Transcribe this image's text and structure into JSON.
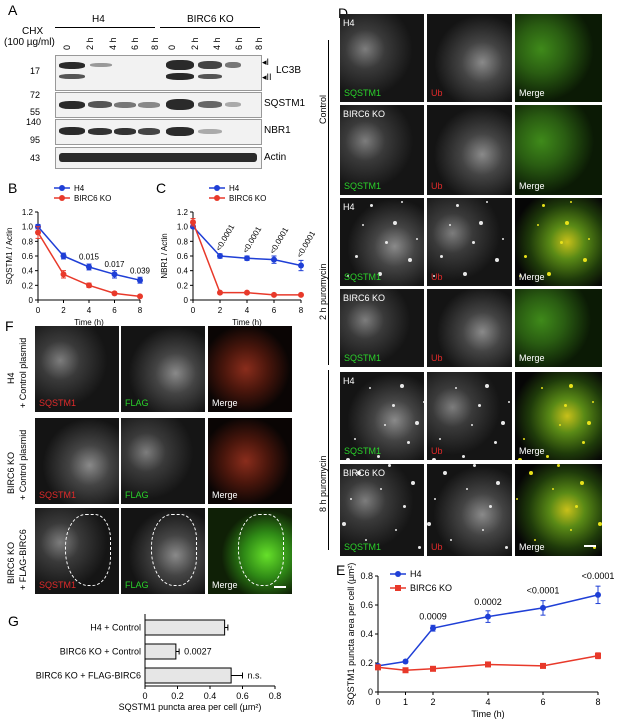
{
  "panels": {
    "A": "A",
    "B": "B",
    "C": "C",
    "D": "D",
    "E": "E",
    "F": "F",
    "G": "G"
  },
  "A": {
    "cond_label": "CHX",
    "cond_dose": "(100 µg/ml)",
    "groups": [
      "H4",
      "BIRC6 KO"
    ],
    "times": [
      "0",
      "2 h",
      "2 h",
      "4 h",
      "6 h",
      "8 h"
    ],
    "markers": [
      "LC3B",
      "SQSTM1",
      "NBR1",
      "Actin"
    ],
    "lc3b_forms": [
      "◂I",
      "◂II"
    ],
    "mw": {
      "lc3b": "17",
      "sqstm1_a": "72",
      "sqstm1_b": "55",
      "nbr1_a": "140",
      "nbr1_b": "95",
      "actin": "43"
    }
  },
  "D": {
    "cell_lines": [
      "H4",
      "BIRC6 KO",
      "H4",
      "BIRC6 KO",
      "H4",
      "BIRC6 KO"
    ],
    "channels": [
      "SQSTM1",
      "Ub",
      "Merge"
    ],
    "groups": [
      "Control",
      "2 h puromycin",
      "8 h puromycin"
    ]
  },
  "F": {
    "rows": [
      "H4\n+ Control plasmid",
      "BIRC6 KO\n+ Control plasmid",
      "BIRC6 KO\n+ FLAG-BIRC6"
    ],
    "row_h4": "H4",
    "row_ctrl": "+ Control plasmid",
    "row_ko": "BIRC6 KO",
    "row_flag": "+ FLAG-BIRC6",
    "channels": [
      "SQSTM1",
      "FLAG",
      "Merge"
    ]
  },
  "chart_data": [
    {
      "panel": "B",
      "type": "line",
      "xlabel": "Time (h)",
      "ylabel": "SQSTM1 / Actin",
      "x": [
        0,
        2,
        4,
        6,
        8
      ],
      "xlim": [
        0,
        8
      ],
      "ylim": [
        0,
        1.2
      ],
      "xticks": [
        "0",
        "2",
        "4",
        "6",
        "8"
      ],
      "yticks": [
        "0",
        "0.2",
        "0.4",
        "0.6",
        "0.8",
        "1.0",
        "1.2"
      ],
      "series": [
        {
          "name": "H4",
          "color": "#1f3fd6",
          "values": [
            1.0,
            0.6,
            0.45,
            0.35,
            0.27
          ],
          "err": [
            0.03,
            0.04,
            0.04,
            0.05,
            0.04
          ]
        },
        {
          "name": "BIRC6 KO",
          "color": "#e8392a",
          "values": [
            0.92,
            0.35,
            0.2,
            0.09,
            0.05
          ],
          "err": [
            0.08,
            0.05,
            0.03,
            0.02,
            0.01
          ]
        }
      ],
      "annotations": [
        {
          "x": 4,
          "y": 0.55,
          "text": "0.015"
        },
        {
          "x": 6,
          "y": 0.45,
          "text": "0.017"
        },
        {
          "x": 8,
          "y": 0.36,
          "text": "0.039"
        }
      ],
      "legend": "top-right"
    },
    {
      "panel": "C",
      "type": "line",
      "xlabel": "Time (h)",
      "ylabel": "NBR1 / Actin",
      "x": [
        0,
        2,
        4,
        6,
        8
      ],
      "xlim": [
        0,
        8
      ],
      "ylim": [
        0,
        1.2
      ],
      "xticks": [
        "0",
        "2",
        "4",
        "6",
        "8"
      ],
      "yticks": [
        "0",
        "0.2",
        "0.4",
        "0.6",
        "0.8",
        "1.0",
        "1.2"
      ],
      "series": [
        {
          "name": "H4",
          "color": "#1f3fd6",
          "values": [
            1.0,
            0.6,
            0.57,
            0.55,
            0.47
          ],
          "err": [
            0.02,
            0.03,
            0.03,
            0.05,
            0.07
          ]
        },
        {
          "name": "BIRC6 KO",
          "color": "#e8392a",
          "values": [
            1.06,
            0.1,
            0.1,
            0.07,
            0.07
          ],
          "err": [
            0.05,
            0.01,
            0.01,
            0.01,
            0.01
          ]
        }
      ],
      "annotations": [
        {
          "x": 2,
          "y": 0.66,
          "text": "<0.0001"
        },
        {
          "x": 4,
          "y": 0.63,
          "text": "<0.0001"
        },
        {
          "x": 6,
          "y": 0.62,
          "text": "<0.0001"
        },
        {
          "x": 8,
          "y": 0.57,
          "text": "<0.0001"
        }
      ],
      "legend": "top-right"
    },
    {
      "panel": "E",
      "type": "line",
      "xlabel": "Time (h)",
      "ylabel": "SQSTM1 puncta area per cell (µm²)",
      "x": [
        0,
        1,
        2,
        4,
        6,
        8
      ],
      "xlim": [
        0,
        8
      ],
      "ylim": [
        0,
        0.8
      ],
      "xticks": [
        "0",
        "1",
        "2",
        "4",
        "6",
        "8"
      ],
      "yticks": [
        "0",
        "0.2",
        "0.4",
        "0.6",
        "0.8"
      ],
      "series": [
        {
          "name": "H4",
          "color": "#1f3fd6",
          "values": [
            0.18,
            0.21,
            0.44,
            0.52,
            0.58,
            0.67
          ],
          "err": [
            0.01,
            0.01,
            0.02,
            0.04,
            0.05,
            0.06
          ]
        },
        {
          "name": "BIRC6 KO",
          "color": "#e8392a",
          "values": [
            0.17,
            0.15,
            0.16,
            0.19,
            0.18,
            0.25
          ],
          "err": [
            0.01,
            0.01,
            0.01,
            0.01,
            0.01,
            0.02
          ]
        }
      ],
      "annotations": [
        {
          "x": 2,
          "y": 0.5,
          "text": "0.0009"
        },
        {
          "x": 4,
          "y": 0.6,
          "text": "0.0002"
        },
        {
          "x": 6,
          "y": 0.68,
          "text": "<0.0001"
        },
        {
          "x": 8,
          "y": 0.78,
          "text": "<0.0001"
        }
      ],
      "legend": "top-left"
    },
    {
      "panel": "G",
      "type": "bar",
      "orientation": "horizontal",
      "categories": [
        "H4 + Control",
        "BIRC6 KO + Control",
        "BIRC6 KO + FLAG-BIRC6"
      ],
      "values": [
        0.49,
        0.19,
        0.53
      ],
      "err": [
        0.02,
        0.02,
        0.07
      ],
      "xlabel": "SQSTM1 puncta area per cell (µm²)",
      "xlim": [
        0,
        0.8
      ],
      "xticks": [
        "0",
        "0.2",
        "0.4",
        "0.6",
        "0.8"
      ],
      "annotations": [
        {
          "category": 1,
          "text": "0.0027"
        },
        {
          "category": 2,
          "text": "n.s."
        }
      ]
    }
  ]
}
